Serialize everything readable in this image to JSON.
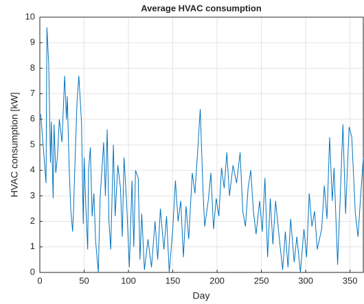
{
  "chart_data": {
    "type": "line",
    "title": "Average HVAC consumption",
    "x_label": "Day",
    "y_label": "HVAC consumption [kW]",
    "x": [
      1,
      7,
      8,
      10,
      12,
      13,
      15,
      16,
      18,
      20,
      22,
      25,
      28,
      30,
      31,
      33,
      35,
      37,
      38,
      40,
      42,
      44,
      47,
      49,
      50,
      52,
      54,
      55,
      57,
      59,
      61,
      63,
      66,
      68,
      72,
      74,
      76,
      78,
      80,
      83,
      85,
      88,
      91,
      93,
      95,
      98,
      101,
      104,
      106,
      108,
      111,
      113,
      115,
      118,
      122,
      126,
      130,
      133,
      136,
      140,
      143,
      146,
      150,
      153,
      156,
      159,
      162,
      165,
      168,
      172,
      175,
      178,
      181,
      184,
      186,
      190,
      193,
      196,
      199,
      202,
      205,
      208,
      211,
      214,
      218,
      222,
      226,
      229,
      232,
      235,
      238,
      241,
      244,
      248,
      251,
      254,
      257,
      260,
      263,
      266,
      270,
      274,
      277,
      280,
      283,
      287,
      290,
      294,
      298,
      301,
      304,
      307,
      310,
      313,
      318,
      321,
      324,
      327,
      330,
      332,
      336,
      339,
      342,
      345,
      349,
      352,
      356,
      359,
      362,
      365
    ],
    "series": [
      {
        "name": "HVAC",
        "color": "#0072bd",
        "values": [
          6.2,
          3.5,
          9.6,
          8.2,
          4.3,
          5.9,
          2.9,
          5.8,
          3.9,
          4.6,
          6.0,
          5.1,
          7.7,
          6.0,
          6.9,
          4.2,
          2.4,
          1.6,
          2.4,
          4.7,
          6.7,
          7.7,
          5.9,
          1.9,
          4.5,
          2.5,
          0.9,
          4.0,
          4.9,
          2.2,
          3.1,
          1.2,
          0.0,
          2.9,
          5.1,
          3.0,
          5.6,
          2.0,
          0.9,
          5.0,
          2.2,
          4.2,
          3.3,
          1.4,
          4.5,
          2.7,
          0.2,
          3.6,
          1.0,
          4.0,
          3.7,
          0.5,
          2.3,
          0.1,
          1.3,
          0.2,
          2.0,
          0.5,
          2.5,
          0.9,
          2.2,
          0.0,
          1.7,
          3.6,
          2.0,
          2.8,
          0.6,
          2.6,
          1.3,
          3.9,
          3.1,
          4.7,
          6.4,
          3.3,
          1.8,
          2.8,
          3.9,
          1.7,
          2.9,
          2.2,
          4.1,
          3.3,
          4.7,
          3.0,
          4.2,
          3.5,
          4.7,
          2.4,
          1.8,
          3.3,
          4.0,
          2.4,
          1.5,
          2.8,
          1.6,
          3.7,
          0.6,
          2.9,
          1.1,
          2.8,
          1.4,
          0.1,
          1.6,
          0.2,
          2.1,
          0.4,
          1.4,
          0.0,
          1.7,
          0.6,
          3.1,
          1.8,
          2.4,
          0.9,
          1.7,
          3.4,
          2.1,
          5.3,
          2.8,
          4.1,
          0.3,
          3.0,
          5.8,
          2.3,
          5.7,
          5.3,
          2.3,
          1.4,
          3.0,
          4.5
        ]
      }
    ],
    "xlim": [
      0,
      365
    ],
    "xticks": [
      0,
      50,
      100,
      150,
      200,
      250,
      300,
      350
    ],
    "ylim": [
      0,
      10
    ],
    "yticks": [
      0,
      1,
      2,
      3,
      4,
      5,
      6,
      7,
      8,
      9,
      10
    ],
    "grid": true
  }
}
